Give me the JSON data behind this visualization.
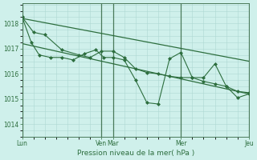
{
  "bg_color": "#cff0eb",
  "grid_color": "#aed8d2",
  "line_color": "#2d6e3e",
  "marker_color": "#2d6e3e",
  "xlabel": "Pression niveau de la mer( hPa )",
  "ylim": [
    1013.5,
    1018.8
  ],
  "yticks": [
    1014,
    1015,
    1016,
    1017,
    1018
  ],
  "xtick_labels": [
    "Lun",
    "Ven",
    "Mar",
    "Mer",
    "Jeu"
  ],
  "xtick_positions": [
    0,
    7,
    8,
    14,
    20
  ],
  "vline_positions": [
    0,
    7,
    8,
    14,
    20
  ],
  "xmin": 0,
  "xmax": 20,
  "line1_x": [
    0,
    20
  ],
  "line1_y": [
    1018.2,
    1016.5
  ],
  "line2_x": [
    0,
    20
  ],
  "line2_y": [
    1017.2,
    1015.2
  ],
  "series3_x": [
    0,
    1,
    2,
    3.5,
    5,
    6,
    7,
    8,
    9,
    10,
    11,
    12,
    13,
    14,
    15,
    16,
    17,
    18,
    19,
    20
  ],
  "series3_y": [
    1018.25,
    1017.65,
    1017.55,
    1016.95,
    1016.75,
    1016.65,
    1016.9,
    1016.9,
    1016.65,
    1016.2,
    1016.05,
    1016.0,
    1015.9,
    1015.85,
    1015.85,
    1015.7,
    1015.6,
    1015.5,
    1015.3,
    1015.25
  ],
  "series4_x": [
    0,
    0.8,
    1.5,
    2.5,
    3.5,
    4.5,
    5.5,
    6.5,
    7.2,
    8,
    9,
    10,
    11,
    12,
    13,
    14,
    15,
    16,
    17,
    18,
    19,
    20
  ],
  "series4_y": [
    1018.25,
    1017.25,
    1016.75,
    1016.65,
    1016.65,
    1016.55,
    1016.8,
    1016.95,
    1016.65,
    1016.65,
    1016.55,
    1015.75,
    1014.85,
    1014.8,
    1016.6,
    1016.85,
    1015.85,
    1015.85,
    1016.4,
    1015.5,
    1015.05,
    1015.2
  ]
}
